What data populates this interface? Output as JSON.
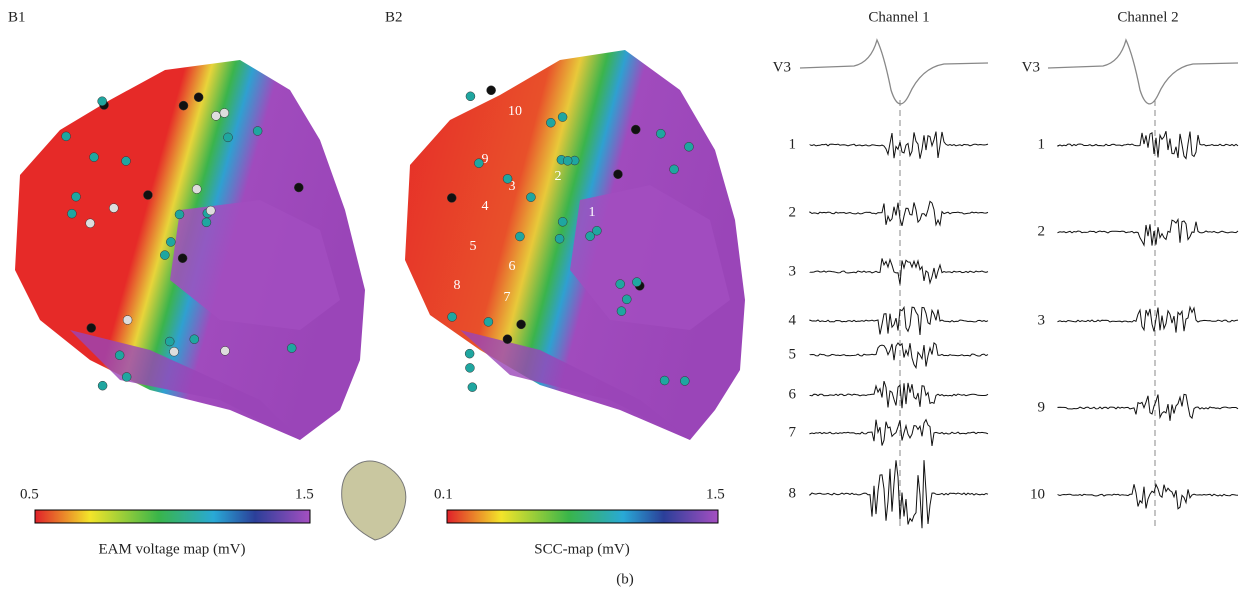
{
  "panels": {
    "b1": "B1",
    "b2": "B2"
  },
  "colorbars": [
    {
      "min_label": "0.5",
      "max_label": "1.5",
      "title": "EAM voltage map (mV)"
    },
    {
      "min_label": "0.1",
      "max_label": "1.5",
      "title": "SCC-map (mV)"
    }
  ],
  "map_points": [
    "1",
    "2",
    "3",
    "4",
    "5",
    "6",
    "7",
    "8",
    "9",
    "10"
  ],
  "channels": [
    {
      "title": "Channel 1",
      "reference": "V3",
      "leads": [
        "1",
        "2",
        "3",
        "4",
        "5",
        "6",
        "7",
        "8"
      ]
    },
    {
      "title": "Channel 2",
      "reference": "V3",
      "leads": [
        "1",
        "2",
        "3",
        "9",
        "10"
      ]
    }
  ],
  "caption": "(b)"
}
